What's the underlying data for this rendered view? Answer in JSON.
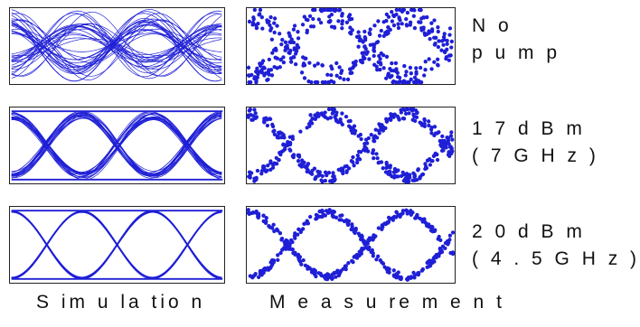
{
  "rows": [
    {
      "label_line1": "N o",
      "label_line2": "p u m p",
      "eye_opening": 0.25
    },
    {
      "label_line1": "1 7 d B m",
      "label_line2": "( 7 G H z )",
      "eye_opening": 0.75
    },
    {
      "label_line1": "2 0 d B m",
      "label_line2": "( 4 . 5 G H z )",
      "eye_opening": 0.95
    }
  ],
  "columns": {
    "simulation": "S im u la tio n",
    "measurement": "M e a s u re m e n t"
  },
  "trace_color": "#1f1fd6"
}
